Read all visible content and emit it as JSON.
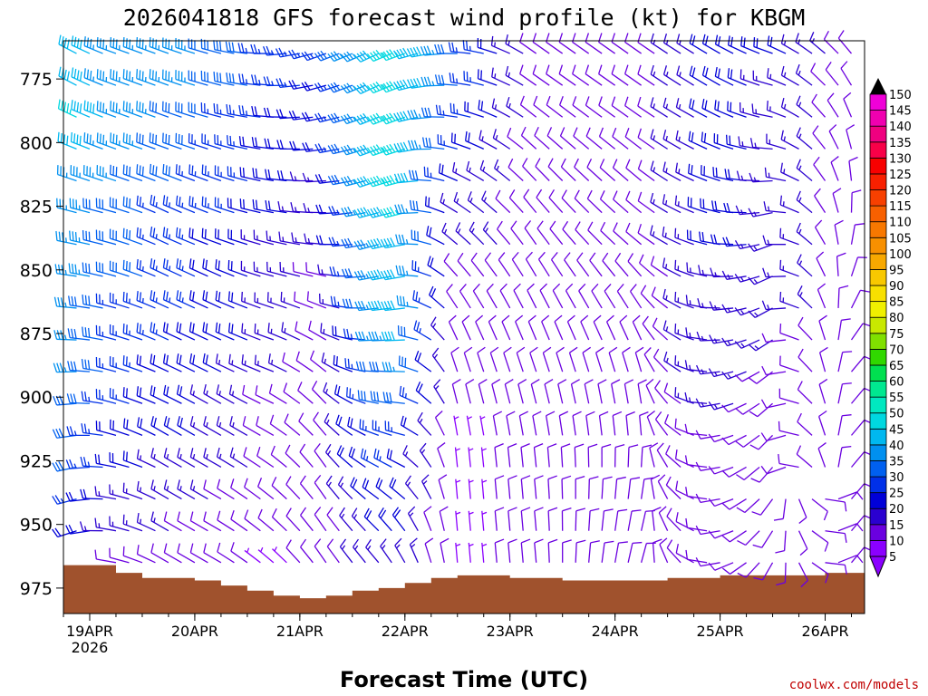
{
  "chart_data": {
    "type": "wind_barb_time_height",
    "title": "2026041818 GFS forecast wind profile (kt) for KBGM",
    "xlabel": "Forecast Time (UTC)",
    "ylabel": "",
    "credit": "coolwx.com/models",
    "x_unit": "hours since 2026-04-18 18Z",
    "xlim": [
      0,
      183
    ],
    "ylim": [
      985,
      760
    ],
    "y_ticks": [
      775,
      800,
      825,
      850,
      875,
      900,
      925,
      950,
      975
    ],
    "x_ticks": [
      {
        "hour": 6,
        "label": "19APR",
        "sublabel": "2026"
      },
      {
        "hour": 30,
        "label": "20APR"
      },
      {
        "hour": 54,
        "label": "21APR"
      },
      {
        "hour": 78,
        "label": "22APR"
      },
      {
        "hour": 102,
        "label": "23APR"
      },
      {
        "hour": 126,
        "label": "24APR"
      },
      {
        "hour": 150,
        "label": "25APR"
      },
      {
        "hour": 174,
        "label": "26APR"
      }
    ],
    "colorbar": {
      "levels": [
        5,
        10,
        15,
        20,
        25,
        30,
        35,
        40,
        45,
        50,
        55,
        60,
        65,
        70,
        75,
        80,
        85,
        90,
        95,
        100,
        105,
        110,
        115,
        120,
        125,
        130,
        135,
        140,
        145,
        150
      ],
      "colors": [
        "#8B00FF",
        "#6A00E0",
        "#2A00D0",
        "#0000D8",
        "#0030E8",
        "#0060F0",
        "#0090F0",
        "#00B8F0",
        "#00D8E0",
        "#00E8C0",
        "#00E890",
        "#00E050",
        "#30D800",
        "#80E000",
        "#C8E800",
        "#F0F000",
        "#F8E000",
        "#F8C800",
        "#F8A800",
        "#F89000",
        "#F87800",
        "#F86000",
        "#F84000",
        "#F82000",
        "#F80000",
        "#F80048",
        "#F00080",
        "#F000B0",
        "#F000D8",
        "#E000F0"
      ],
      "unit": "kt"
    },
    "sample_times_hours": [
      0,
      6,
      12,
      18,
      24,
      30,
      36,
      42,
      48,
      54,
      60,
      66,
      72,
      78,
      84,
      90,
      96,
      102,
      108,
      114,
      120,
      126,
      132,
      138,
      144,
      150,
      156,
      162,
      168,
      174,
      180
    ],
    "surface_pressure_hpa": [
      966,
      966,
      969,
      971,
      971,
      972,
      974,
      976,
      978,
      979,
      978,
      976,
      975,
      973,
      971,
      970,
      970,
      971,
      971,
      972,
      972,
      972,
      972,
      971,
      971,
      970,
      970,
      970,
      970,
      969,
      969
    ],
    "wind_profile_levels_hpa": [
      765,
      780,
      795,
      810,
      825,
      840,
      855,
      870,
      885,
      900,
      915,
      930,
      945,
      960
    ],
    "wind_profile_times": [
      {
        "hour": 0,
        "speeds_kt": [
          40,
          45,
          45,
          40,
          35,
          35,
          35,
          35,
          35,
          35,
          30,
          30,
          25,
          20
        ],
        "dirs_deg": [
          300,
          300,
          295,
          290,
          285,
          280,
          275,
          270,
          265,
          260,
          255,
          250,
          245,
          240
        ]
      },
      {
        "hour": 12,
        "speeds_kt": [
          35,
          35,
          35,
          35,
          30,
          30,
          30,
          25,
          25,
          25,
          20,
          20,
          15,
          10
        ],
        "dirs_deg": [
          290,
          290,
          290,
          290,
          285,
          285,
          285,
          285,
          285,
          285,
          285,
          280,
          280,
          280
        ]
      },
      {
        "hour": 24,
        "speeds_kt": [
          35,
          35,
          30,
          30,
          25,
          25,
          25,
          25,
          20,
          20,
          20,
          15,
          15,
          10
        ],
        "dirs_deg": [
          290,
          290,
          290,
          290,
          295,
          295,
          295,
          295,
          295,
          295,
          300,
          300,
          300,
          300
        ]
      },
      {
        "hour": 36,
        "speeds_kt": [
          30,
          30,
          25,
          25,
          25,
          20,
          20,
          20,
          20,
          15,
          15,
          15,
          10,
          10
        ],
        "dirs_deg": [
          285,
          285,
          285,
          290,
          290,
          290,
          295,
          295,
          295,
          300,
          300,
          300,
          300,
          300
        ]
      },
      {
        "hour": 48,
        "speeds_kt": [
          25,
          25,
          20,
          20,
          20,
          15,
          15,
          15,
          15,
          10,
          10,
          10,
          10,
          5
        ],
        "dirs_deg": [
          270,
          275,
          275,
          280,
          280,
          285,
          285,
          290,
          290,
          295,
          300,
          305,
          310,
          310
        ]
      },
      {
        "hour": 60,
        "speeds_kt": [
          25,
          20,
          20,
          15,
          15,
          15,
          10,
          10,
          10,
          10,
          10,
          10,
          10,
          10
        ],
        "dirs_deg": [
          250,
          255,
          260,
          265,
          270,
          275,
          285,
          295,
          305,
          315,
          320,
          325,
          325,
          325
        ]
      },
      {
        "hour": 72,
        "speeds_kt": [
          40,
          40,
          40,
          40,
          40,
          35,
          35,
          35,
          30,
          30,
          25,
          25,
          20,
          15
        ],
        "dirs_deg": [
          245,
          245,
          250,
          250,
          255,
          255,
          260,
          265,
          270,
          280,
          290,
          300,
          310,
          320
        ]
      },
      {
        "hour": 78,
        "speeds_kt": [
          45,
          45,
          45,
          45,
          45,
          40,
          40,
          40,
          35,
          30,
          25,
          20,
          20,
          15
        ],
        "dirs_deg": [
          250,
          250,
          250,
          255,
          255,
          260,
          260,
          265,
          270,
          275,
          285,
          300,
          315,
          330
        ]
      },
      {
        "hour": 90,
        "speeds_kt": [
          30,
          30,
          25,
          20,
          15,
          15,
          10,
          10,
          10,
          10,
          5,
          5,
          5,
          5
        ],
        "dirs_deg": [
          270,
          275,
          280,
          290,
          300,
          310,
          320,
          330,
          340,
          345,
          350,
          355,
          355,
          355
        ]
      },
      {
        "hour": 108,
        "speeds_kt": [
          10,
          10,
          10,
          10,
          10,
          10,
          10,
          10,
          10,
          10,
          10,
          10,
          10,
          10
        ],
        "dirs_deg": [
          305,
          305,
          310,
          315,
          320,
          325,
          330,
          335,
          340,
          345,
          350,
          355,
          355,
          355
        ]
      },
      {
        "hour": 132,
        "speeds_kt": [
          10,
          10,
          10,
          10,
          10,
          10,
          10,
          10,
          10,
          10,
          10,
          10,
          10,
          10
        ],
        "dirs_deg": [
          305,
          305,
          305,
          310,
          310,
          310,
          320,
          330,
          340,
          350,
          355,
          5,
          10,
          15
        ]
      },
      {
        "hour": 150,
        "speeds_kt": [
          20,
          20,
          20,
          20,
          20,
          20,
          15,
          15,
          15,
          15,
          10,
          10,
          10,
          10
        ],
        "dirs_deg": [
          300,
          300,
          295,
          290,
          285,
          280,
          275,
          270,
          265,
          260,
          260,
          260,
          260,
          260
        ]
      },
      {
        "hour": 162,
        "speeds_kt": [
          20,
          15,
          15,
          15,
          15,
          15,
          15,
          15,
          10,
          10,
          10,
          10,
          10,
          10
        ],
        "dirs_deg": [
          290,
          285,
          280,
          270,
          260,
          250,
          245,
          240,
          235,
          230,
          225,
          220,
          215,
          210
        ]
      },
      {
        "hour": 180,
        "speeds_kt": [
          10,
          10,
          10,
          10,
          10,
          10,
          10,
          10,
          10,
          10,
          10,
          10,
          10,
          10
        ],
        "dirs_deg": [
          320,
          330,
          340,
          350,
          360,
          10,
          20,
          30,
          40,
          40,
          40,
          40,
          40,
          40
        ]
      }
    ]
  }
}
